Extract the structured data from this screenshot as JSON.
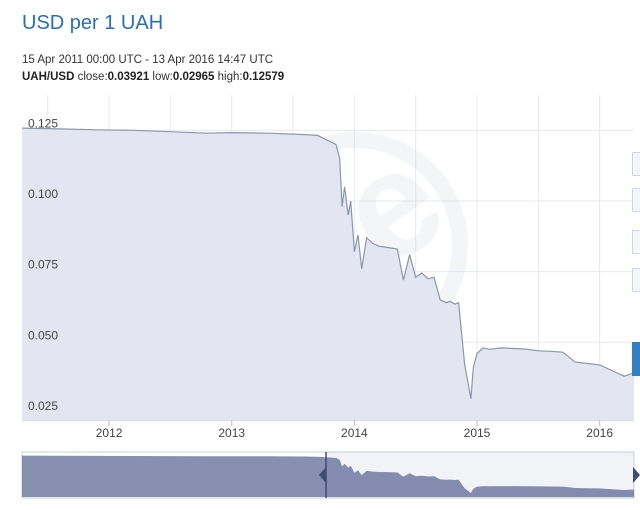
{
  "title": "USD per 1 UAH",
  "date_range": "15 Apr 2011 00:00 UTC - 13 Apr 2016 14:47 UTC",
  "stats": {
    "pair": "UAH/USD",
    "close_label": "close:",
    "close": "0.03921",
    "low_label": "low:",
    "low": "0.02965",
    "high_label": "high:",
    "high": "0.12579"
  },
  "colors": {
    "title": "#2a6ebb",
    "area_fill": "#e3e6f0",
    "line": "#8c96ab",
    "navigator": "#5f6b95",
    "navigator_light": "#c5cad9"
  },
  "chart_data": {
    "type": "area",
    "title": "USD per 1 UAH",
    "xlabel": "",
    "ylabel": "",
    "xlim": [
      2011.29,
      2016.28
    ],
    "ylim": [
      0.0225,
      0.1375
    ],
    "y_ticks": [
      "0.125",
      "0.100",
      "0.075",
      "0.050",
      "0.025"
    ],
    "x_ticks": [
      "2012",
      "2013",
      "2014",
      "2015",
      "2016"
    ],
    "grid": true,
    "series": [
      {
        "x": [
          2011.29,
          2011.6,
          2011.9,
          2012.2,
          2012.5,
          2012.8,
          2013.0,
          2013.3,
          2013.6,
          2013.7,
          2013.85,
          2013.88,
          2013.9,
          2013.92,
          2013.95,
          2013.97,
          2014.0,
          2014.03,
          2014.06,
          2014.1,
          2014.15,
          2014.2,
          2014.35,
          2014.4,
          2014.45,
          2014.5,
          2014.55,
          2014.6,
          2014.65,
          2014.7,
          2014.75,
          2014.78,
          2014.82,
          2014.85,
          2014.9,
          2014.93,
          2014.95,
          2014.97,
          2015.0,
          2015.05,
          2015.1,
          2015.2,
          2015.3,
          2015.4,
          2015.5,
          2015.6,
          2015.7,
          2015.8,
          2015.9,
          2016.0,
          2016.1,
          2016.2,
          2016.28
        ],
        "y": [
          0.1258,
          0.1255,
          0.1252,
          0.125,
          0.1245,
          0.124,
          0.1242,
          0.124,
          0.1235,
          0.1232,
          0.12,
          0.115,
          0.098,
          0.105,
          0.095,
          0.1,
          0.082,
          0.088,
          0.076,
          0.087,
          0.085,
          0.084,
          0.083,
          0.072,
          0.081,
          0.073,
          0.0745,
          0.0725,
          0.073,
          0.065,
          0.064,
          0.0645,
          0.0635,
          0.064,
          0.042,
          0.035,
          0.03,
          0.041,
          0.046,
          0.048,
          0.0475,
          0.048,
          0.0478,
          0.0476,
          0.047,
          0.0468,
          0.0465,
          0.043,
          0.0425,
          0.042,
          0.04,
          0.038,
          0.0392
        ]
      }
    ]
  }
}
